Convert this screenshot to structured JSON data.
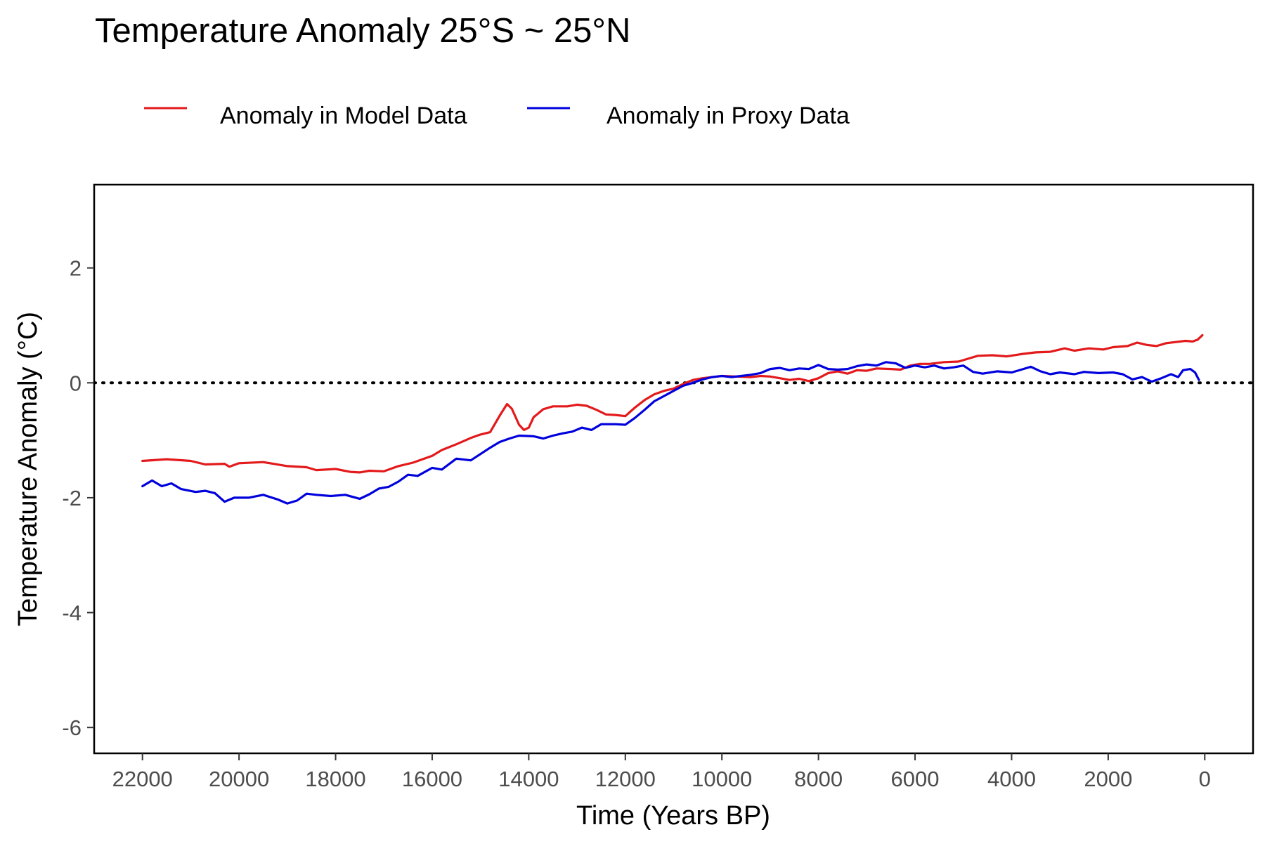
{
  "chart_data": {
    "type": "line",
    "title": "Temperature Anomaly 25°S ~ 25°N",
    "xlabel": "Time (Years BP)",
    "ylabel": "Temperature Anomaly (°C)",
    "xlim": [
      23000,
      -1000
    ],
    "x_reversed": true,
    "ylim": [
      -6.45,
      3.45
    ],
    "x_ticks": [
      22000,
      20000,
      18000,
      16000,
      14000,
      12000,
      10000,
      8000,
      6000,
      4000,
      2000,
      0
    ],
    "y_ticks": [
      -6,
      -4,
      -2,
      0,
      2
    ],
    "grid": false,
    "legend_position": "top",
    "reference_line": {
      "y": 0,
      "style": "dotted",
      "color": "#000000"
    },
    "series": [
      {
        "name": "Anomaly in Model Data",
        "color": "#e31a1c",
        "points": [
          [
            22000,
            -1.36
          ],
          [
            21500,
            -1.33
          ],
          [
            21000,
            -1.36
          ],
          [
            20700,
            -1.42
          ],
          [
            20300,
            -1.41
          ],
          [
            20200,
            -1.46
          ],
          [
            20000,
            -1.4
          ],
          [
            19500,
            -1.38
          ],
          [
            19000,
            -1.45
          ],
          [
            18600,
            -1.47
          ],
          [
            18400,
            -1.52
          ],
          [
            18000,
            -1.5
          ],
          [
            17700,
            -1.55
          ],
          [
            17500,
            -1.56
          ],
          [
            17300,
            -1.53
          ],
          [
            17000,
            -1.54
          ],
          [
            16700,
            -1.45
          ],
          [
            16400,
            -1.39
          ],
          [
            16000,
            -1.27
          ],
          [
            15800,
            -1.17
          ],
          [
            15500,
            -1.07
          ],
          [
            15200,
            -0.96
          ],
          [
            15000,
            -0.9
          ],
          [
            14800,
            -0.86
          ],
          [
            14600,
            -0.57
          ],
          [
            14450,
            -0.37
          ],
          [
            14350,
            -0.45
          ],
          [
            14200,
            -0.73
          ],
          [
            14100,
            -0.82
          ],
          [
            14000,
            -0.78
          ],
          [
            13900,
            -0.6
          ],
          [
            13700,
            -0.46
          ],
          [
            13500,
            -0.41
          ],
          [
            13200,
            -0.41
          ],
          [
            13000,
            -0.38
          ],
          [
            12800,
            -0.4
          ],
          [
            12600,
            -0.47
          ],
          [
            12400,
            -0.55
          ],
          [
            12200,
            -0.56
          ],
          [
            12000,
            -0.58
          ],
          [
            11800,
            -0.43
          ],
          [
            11600,
            -0.3
          ],
          [
            11400,
            -0.2
          ],
          [
            11200,
            -0.14
          ],
          [
            11000,
            -0.1
          ],
          [
            10800,
            -0.02
          ],
          [
            10600,
            0.05
          ],
          [
            10400,
            0.08
          ],
          [
            10200,
            0.1
          ],
          [
            10000,
            0.12
          ],
          [
            9700,
            0.11
          ],
          [
            9400,
            0.1
          ],
          [
            9200,
            0.12
          ],
          [
            9000,
            0.11
          ],
          [
            8800,
            0.08
          ],
          [
            8600,
            0.05
          ],
          [
            8400,
            0.07
          ],
          [
            8200,
            0.03
          ],
          [
            8000,
            0.08
          ],
          [
            7800,
            0.17
          ],
          [
            7600,
            0.2
          ],
          [
            7400,
            0.16
          ],
          [
            7200,
            0.22
          ],
          [
            7000,
            0.21
          ],
          [
            6800,
            0.25
          ],
          [
            6500,
            0.24
          ],
          [
            6300,
            0.23
          ],
          [
            6100,
            0.3
          ],
          [
            5900,
            0.33
          ],
          [
            5700,
            0.33
          ],
          [
            5400,
            0.36
          ],
          [
            5100,
            0.37
          ],
          [
            4900,
            0.42
          ],
          [
            4700,
            0.47
          ],
          [
            4400,
            0.48
          ],
          [
            4100,
            0.46
          ],
          [
            3800,
            0.5
          ],
          [
            3500,
            0.53
          ],
          [
            3200,
            0.54
          ],
          [
            2900,
            0.6
          ],
          [
            2700,
            0.56
          ],
          [
            2400,
            0.6
          ],
          [
            2100,
            0.58
          ],
          [
            1900,
            0.62
          ],
          [
            1600,
            0.64
          ],
          [
            1400,
            0.7
          ],
          [
            1200,
            0.66
          ],
          [
            1000,
            0.64
          ],
          [
            800,
            0.69
          ],
          [
            600,
            0.71
          ],
          [
            400,
            0.73
          ],
          [
            250,
            0.72
          ],
          [
            150,
            0.75
          ],
          [
            50,
            0.83
          ]
        ]
      },
      {
        "name": "Anomaly in Proxy Data",
        "color": "#0000dd",
        "points": [
          [
            22000,
            -1.8
          ],
          [
            21800,
            -1.7
          ],
          [
            21600,
            -1.8
          ],
          [
            21400,
            -1.75
          ],
          [
            21200,
            -1.85
          ],
          [
            20900,
            -1.9
          ],
          [
            20700,
            -1.88
          ],
          [
            20500,
            -1.92
          ],
          [
            20300,
            -2.07
          ],
          [
            20100,
            -2.0
          ],
          [
            19800,
            -2.0
          ],
          [
            19500,
            -1.95
          ],
          [
            19200,
            -2.03
          ],
          [
            19000,
            -2.1
          ],
          [
            18800,
            -2.05
          ],
          [
            18600,
            -1.93
          ],
          [
            18400,
            -1.95
          ],
          [
            18100,
            -1.97
          ],
          [
            17800,
            -1.95
          ],
          [
            17500,
            -2.02
          ],
          [
            17300,
            -1.94
          ],
          [
            17100,
            -1.84
          ],
          [
            16900,
            -1.81
          ],
          [
            16700,
            -1.72
          ],
          [
            16500,
            -1.6
          ],
          [
            16300,
            -1.62
          ],
          [
            16000,
            -1.48
          ],
          [
            15800,
            -1.51
          ],
          [
            15500,
            -1.32
          ],
          [
            15200,
            -1.35
          ],
          [
            15000,
            -1.24
          ],
          [
            14800,
            -1.13
          ],
          [
            14600,
            -1.03
          ],
          [
            14400,
            -0.97
          ],
          [
            14200,
            -0.92
          ],
          [
            13900,
            -0.93
          ],
          [
            13700,
            -0.97
          ],
          [
            13500,
            -0.92
          ],
          [
            13300,
            -0.88
          ],
          [
            13100,
            -0.85
          ],
          [
            12900,
            -0.78
          ],
          [
            12700,
            -0.82
          ],
          [
            12500,
            -0.72
          ],
          [
            12200,
            -0.72
          ],
          [
            12000,
            -0.73
          ],
          [
            11800,
            -0.61
          ],
          [
            11600,
            -0.47
          ],
          [
            11400,
            -0.32
          ],
          [
            11200,
            -0.23
          ],
          [
            11000,
            -0.14
          ],
          [
            10800,
            -0.05
          ],
          [
            10600,
            0.0
          ],
          [
            10400,
            0.06
          ],
          [
            10200,
            0.1
          ],
          [
            10000,
            0.12
          ],
          [
            9800,
            0.1
          ],
          [
            9600,
            0.12
          ],
          [
            9400,
            0.14
          ],
          [
            9200,
            0.17
          ],
          [
            9000,
            0.24
          ],
          [
            8800,
            0.26
          ],
          [
            8600,
            0.22
          ],
          [
            8400,
            0.25
          ],
          [
            8200,
            0.24
          ],
          [
            8000,
            0.31
          ],
          [
            7800,
            0.24
          ],
          [
            7600,
            0.23
          ],
          [
            7400,
            0.24
          ],
          [
            7200,
            0.29
          ],
          [
            7000,
            0.32
          ],
          [
            6800,
            0.3
          ],
          [
            6600,
            0.36
          ],
          [
            6400,
            0.34
          ],
          [
            6200,
            0.26
          ],
          [
            6000,
            0.3
          ],
          [
            5800,
            0.27
          ],
          [
            5600,
            0.3
          ],
          [
            5400,
            0.25
          ],
          [
            5200,
            0.27
          ],
          [
            5000,
            0.3
          ],
          [
            4800,
            0.19
          ],
          [
            4600,
            0.16
          ],
          [
            4300,
            0.2
          ],
          [
            4000,
            0.18
          ],
          [
            3800,
            0.23
          ],
          [
            3600,
            0.28
          ],
          [
            3400,
            0.2
          ],
          [
            3200,
            0.15
          ],
          [
            3000,
            0.18
          ],
          [
            2700,
            0.15
          ],
          [
            2500,
            0.19
          ],
          [
            2200,
            0.17
          ],
          [
            1900,
            0.18
          ],
          [
            1700,
            0.15
          ],
          [
            1500,
            0.06
          ],
          [
            1300,
            0.1
          ],
          [
            1100,
            0.02
          ],
          [
            900,
            0.08
          ],
          [
            700,
            0.15
          ],
          [
            550,
            0.1
          ],
          [
            450,
            0.22
          ],
          [
            300,
            0.24
          ],
          [
            200,
            0.18
          ],
          [
            120,
            0.05
          ]
        ]
      }
    ]
  }
}
